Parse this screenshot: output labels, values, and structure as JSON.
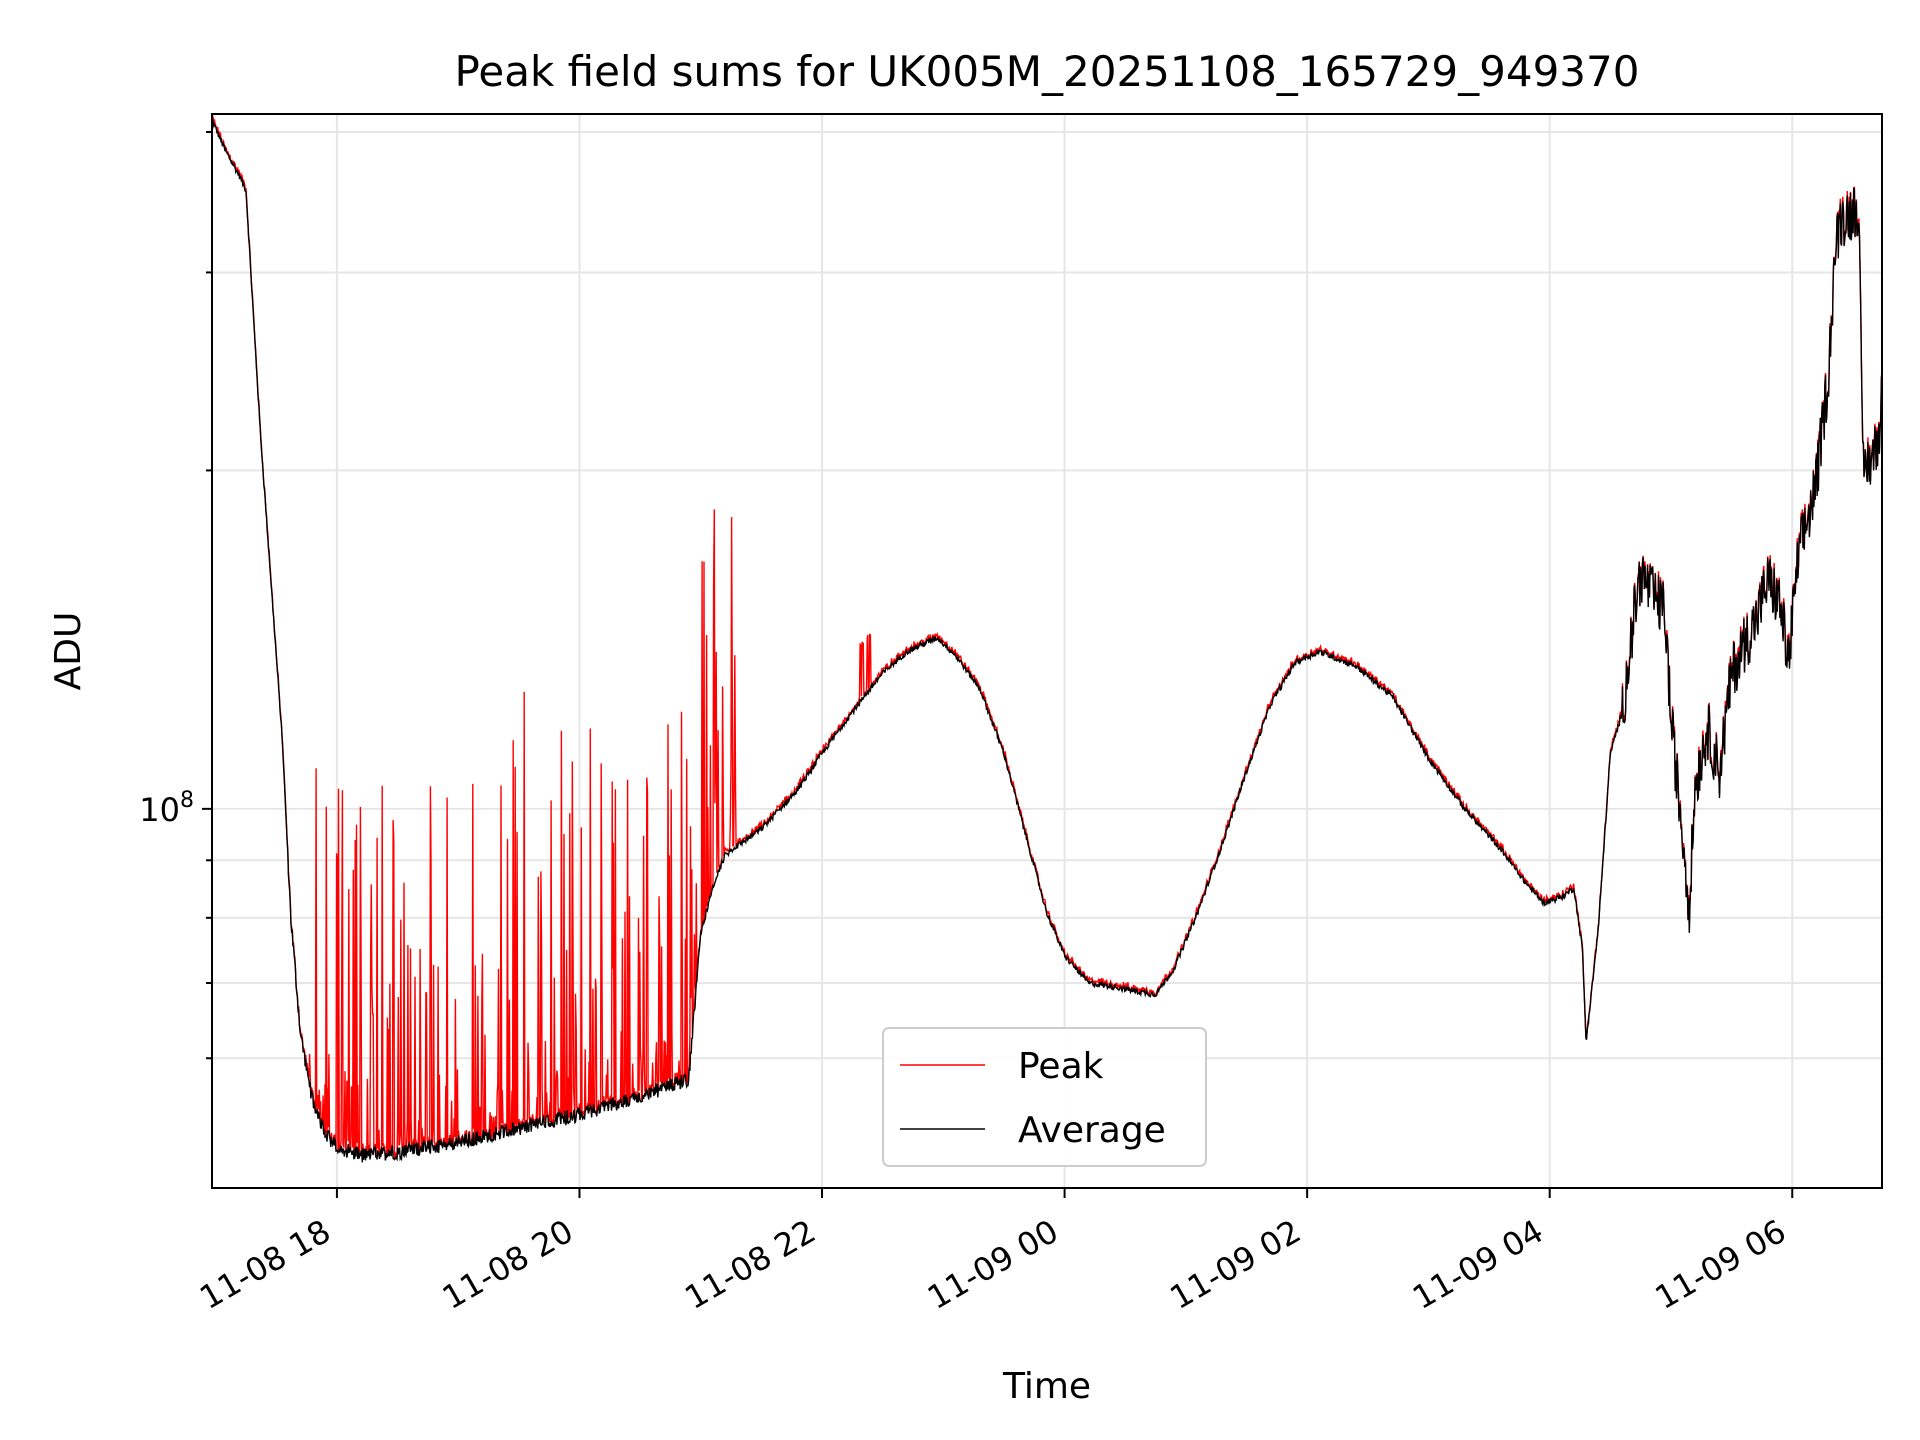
{
  "chart_data": {
    "type": "line",
    "title": "Peak field sums for UK005M_20251108_165729_949370",
    "xlabel": "Time",
    "ylabel": "ADU",
    "yscale": "log",
    "ylim": [
      46000000,
      415000000
    ],
    "xlim_hours": [
      16.97,
      30.74
    ],
    "x_ticks": [
      {
        "hour": 18,
        "label": "11-08 18"
      },
      {
        "hour": 20,
        "label": "11-08 20"
      },
      {
        "hour": 22,
        "label": "11-08 22"
      },
      {
        "hour": 24,
        "label": "11-09 00"
      },
      {
        "hour": 26,
        "label": "11-09 02"
      },
      {
        "hour": 28,
        "label": "11-09 04"
      },
      {
        "hour": 30,
        "label": "11-09 06"
      }
    ],
    "y_major_ticks": [
      {
        "value": 100000000,
        "label_base": "10",
        "label_exp": "8"
      }
    ],
    "y_minor_ticks": [
      60000000,
      70000000,
      80000000,
      90000000,
      200000000,
      300000000,
      400000000
    ],
    "grid": true,
    "legend_position": "lower-center",
    "series": [
      {
        "name": "Peak",
        "color": "#ff0000"
      },
      {
        "name": "Average",
        "color": "#000000"
      }
    ],
    "average_points": [
      [
        16.97,
        410000000
      ],
      [
        17.08,
        385000000
      ],
      [
        17.2,
        365000000
      ],
      [
        17.25,
        355000000
      ],
      [
        17.37,
        215000000
      ],
      [
        17.55,
        115000000
      ],
      [
        17.62,
        80000000
      ],
      [
        17.7,
        63000000
      ],
      [
        17.8,
        55000000
      ],
      [
        17.9,
        51500000
      ],
      [
        18.0,
        50000000
      ],
      [
        18.2,
        49200000
      ],
      [
        18.5,
        49500000
      ],
      [
        19.0,
        50500000
      ],
      [
        19.5,
        52000000
      ],
      [
        20.0,
        53500000
      ],
      [
        20.5,
        55500000
      ],
      [
        20.9,
        57500000
      ],
      [
        21.0,
        77500000
      ],
      [
        21.1,
        85000000
      ],
      [
        21.2,
        91000000
      ],
      [
        21.5,
        96000000
      ],
      [
        21.8,
        104000000
      ],
      [
        22.0,
        112000000
      ],
      [
        22.2,
        120000000
      ],
      [
        22.4,
        128000000
      ],
      [
        22.5,
        132000000
      ],
      [
        22.7,
        138000000
      ],
      [
        22.95,
        142000000
      ],
      [
        23.1,
        137000000
      ],
      [
        23.3,
        128000000
      ],
      [
        23.5,
        112000000
      ],
      [
        23.7,
        93000000
      ],
      [
        23.85,
        81000000
      ],
      [
        24.0,
        74000000
      ],
      [
        24.2,
        70000000
      ],
      [
        24.4,
        69500000
      ],
      [
        24.6,
        68800000
      ],
      [
        24.75,
        68400000
      ],
      [
        24.9,
        72000000
      ],
      [
        25.1,
        81000000
      ],
      [
        25.3,
        93000000
      ],
      [
        25.5,
        108000000
      ],
      [
        25.7,
        124000000
      ],
      [
        25.9,
        135000000
      ],
      [
        26.1,
        138000000
      ],
      [
        26.4,
        134000000
      ],
      [
        26.7,
        126000000
      ],
      [
        27.0,
        111000000
      ],
      [
        27.3,
        100000000
      ],
      [
        27.6,
        92000000
      ],
      [
        27.8,
        86000000
      ],
      [
        27.95,
        82500000
      ],
      [
        28.1,
        83500000
      ],
      [
        28.2,
        85000000
      ],
      [
        28.27,
        75000000
      ],
      [
        28.3,
        62000000
      ],
      [
        28.4,
        78000000
      ],
      [
        28.5,
        112000000
      ],
      [
        28.6,
        122000000
      ],
      [
        28.7,
        150000000
      ],
      [
        28.75,
        162000000
      ],
      [
        28.85,
        155000000
      ],
      [
        28.95,
        150000000
      ],
      [
        29.0,
        120000000
      ],
      [
        29.1,
        94000000
      ],
      [
        29.15,
        82000000
      ],
      [
        29.2,
        105000000
      ],
      [
        29.3,
        118000000
      ],
      [
        29.4,
        108000000
      ],
      [
        29.5,
        132000000
      ],
      [
        29.6,
        140000000
      ],
      [
        29.7,
        147000000
      ],
      [
        29.8,
        160000000
      ],
      [
        29.9,
        152000000
      ],
      [
        29.97,
        135000000
      ],
      [
        30.05,
        168000000
      ],
      [
        30.15,
        185000000
      ],
      [
        30.2,
        196000000
      ],
      [
        30.3,
        245000000
      ],
      [
        30.35,
        310000000
      ],
      [
        30.4,
        335000000
      ],
      [
        30.5,
        340000000
      ],
      [
        30.55,
        345000000
      ],
      [
        30.58,
        200000000
      ],
      [
        30.65,
        205000000
      ],
      [
        30.71,
        212000000
      ],
      [
        30.74,
        240000000
      ]
    ]
  },
  "legend": {
    "peak_label": "Peak",
    "average_label": "Average"
  }
}
